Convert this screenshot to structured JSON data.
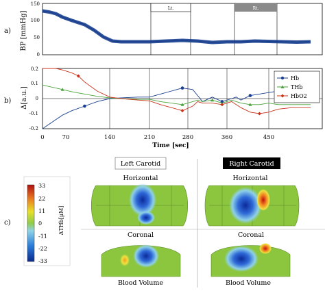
{
  "colors": {
    "bp": "#1a3f8f",
    "hb": "#1a3f8f",
    "thb": "#4aa33a",
    "hbo2": "#c8331a",
    "rc_box": "#8a8a8a"
  },
  "panel_labels": {
    "a": "a)",
    "b": "b)",
    "c": "c)"
  },
  "panel_a": {
    "ylabel": "BP [mmHg]",
    "ylim": [
      0,
      150
    ],
    "yticks": [
      "0",
      "50",
      "100",
      "150"
    ],
    "intervals": [
      {
        "label": "Lt.",
        "start": 210,
        "end": 300
      },
      {
        "label": "Rt.",
        "start": 380,
        "end": 470
      }
    ]
  },
  "chart_data": [
    {
      "type": "line",
      "panel": "a",
      "ylabel": "BP [mmHg]",
      "xlim": [
        0,
        540
      ],
      "ylim": [
        0,
        150
      ],
      "series": [
        {
          "x": [
            0,
            20,
            40,
            60,
            80,
            100,
            115,
            130,
            145,
            160,
            180,
            210,
            240,
            270,
            300,
            330,
            360,
            390,
            420,
            450,
            480,
            510,
            540
          ],
          "y": [
            128,
            125,
            120,
            110,
            100,
            88,
            72,
            52,
            40,
            38,
            38,
            38,
            40,
            42,
            40,
            36,
            38,
            38,
            40,
            39,
            38,
            37,
            38
          ]
        }
      ]
    },
    {
      "type": "line",
      "panel": "b",
      "ylabel": "Δ[a.u.]",
      "xlabel": "Time [sec]",
      "xlim": [
        0,
        540
      ],
      "ylim": [
        -0.2,
        0.2
      ],
      "x_ticks": [
        0,
        70,
        140,
        210,
        280,
        360,
        450
      ],
      "y_ticks": [
        -0.2,
        -0.1,
        0,
        0.1,
        0.2
      ],
      "legend_position": "top-right",
      "series": [
        {
          "name": "Hb",
          "x": [
            0,
            20,
            40,
            60,
            80,
            100,
            120,
            140,
            160,
            190,
            210,
            230,
            250,
            270,
            290,
            300,
            310,
            330,
            350,
            370,
            380,
            390,
            410,
            430,
            450,
            470,
            500,
            540
          ],
          "y": [
            -0.2,
            -0.17,
            -0.14,
            -0.11,
            -0.08,
            -0.05,
            -0.02,
            0,
            0.005,
            0.01,
            0.01,
            0.03,
            0.05,
            0.07,
            0.06,
            0.02,
            -0.02,
            0.01,
            -0.02,
            0,
            0.01,
            -0.01,
            0.02,
            0.03,
            0.04,
            0.05,
            0.04,
            0.03
          ]
        },
        {
          "name": "THb",
          "x": [
            0,
            20,
            40,
            60,
            80,
            100,
            120,
            140,
            160,
            190,
            210,
            230,
            250,
            270,
            290,
            300,
            310,
            330,
            350,
            370,
            390,
            410,
            430,
            450,
            470,
            500,
            540
          ],
          "y": [
            0.09,
            0.08,
            0.07,
            0.06,
            0.045,
            0.03,
            0.015,
            0.005,
            0,
            -0.005,
            -0.005,
            -0.02,
            -0.03,
            -0.04,
            -0.02,
            -0.01,
            -0.02,
            -0.01,
            -0.03,
            -0.01,
            -0.03,
            -0.04,
            -0.04,
            -0.03,
            -0.04,
            -0.04,
            -0.04
          ]
        },
        {
          "name": "HbO2",
          "x": [
            0,
            20,
            40,
            60,
            80,
            90,
            100,
            120,
            140,
            160,
            190,
            210,
            230,
            250,
            270,
            290,
            300,
            310,
            330,
            350,
            370,
            390,
            410,
            430,
            450,
            470,
            500,
            540
          ],
          "y": [
            0.2,
            0.2,
            0.2,
            0.19,
            0.17,
            0.15,
            0.11,
            0.05,
            0.01,
            0,
            -0.01,
            -0.015,
            -0.04,
            -0.06,
            -0.08,
            -0.05,
            -0.02,
            -0.03,
            -0.03,
            -0.04,
            -0.02,
            -0.06,
            -0.09,
            -0.1,
            -0.09,
            -0.07,
            -0.06,
            -0.06
          ]
        }
      ]
    },
    {
      "type": "heatmap",
      "panel": "c",
      "colorbar_label": "ΔTHb[μM]",
      "colorbar_range": [
        -33,
        33
      ],
      "colorbar_ticks": [
        "33",
        "22",
        "11",
        "0",
        "-11",
        "-22",
        "-33"
      ]
    }
  ],
  "panel_b": {
    "ylabel": "Δ[a.u.]",
    "xlabel": "Time [sec]",
    "yticks": [
      "-0.2",
      "-0.1",
      "0",
      "0.1",
      "0.2"
    ],
    "xticks": [
      "0",
      "70",
      "140",
      "210",
      "280",
      "360",
      "450"
    ],
    "legend": [
      "Hb",
      "THb",
      "HbO2"
    ]
  },
  "panel_c": {
    "left_title": "Left Carotid",
    "right_title": "Right Carotid",
    "view_labels": {
      "left_top": "Horizontal",
      "right_top": "Horizontal",
      "left_mid": "Coronal",
      "right_mid": "Coronal",
      "left_bottom": "Blood Volume",
      "right_bottom": "Blood Volume"
    },
    "colorbar": {
      "label": "ΔTHb[μM]",
      "ticks": [
        "33",
        "22",
        "11",
        "0",
        "-11",
        "-22",
        "-33"
      ]
    }
  }
}
